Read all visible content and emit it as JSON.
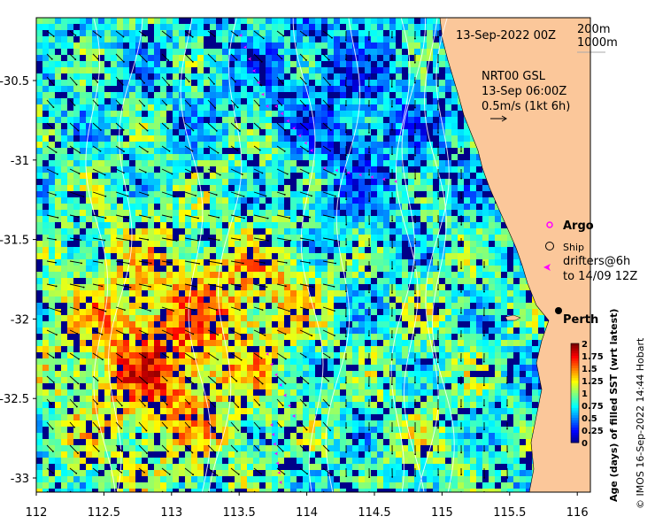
{
  "map": {
    "date_label": "13-Sep-2022 00Z",
    "contour_labels": [
      "200m",
      "1000m"
    ],
    "current_model": "NRT00 GSL",
    "current_time": "13-Sep 06:00Z",
    "current_scale": "0.5m/s (1kt 6h)",
    "x_ticks": [
      "112",
      "112.5",
      "113",
      "113.5",
      "114",
      "114.5",
      "115",
      "115.5",
      "116"
    ],
    "y_ticks": [
      "-30.5",
      "-31",
      "-31.5",
      "-32",
      "-32.5",
      "-33"
    ],
    "place_label": "Perth",
    "colormap": [
      "#00007f",
      "#0000ff",
      "#007fff",
      "#00ffff",
      "#7fff7f",
      "#ffff00",
      "#ff7f00",
      "#ff0000",
      "#7f0000"
    ],
    "land_color": "#fbc79a",
    "observation_color": "#ff00ff"
  },
  "legend": {
    "argo": "Argo",
    "ship": "Ship",
    "drifters_line1": "drifters@6h",
    "drifters_line2": "to 14/09 12Z"
  },
  "colorbar": {
    "tick_labels": [
      "2",
      "1.75",
      "1.5",
      "1.25",
      "1",
      "0.75",
      "0.5",
      "0.25",
      "0"
    ],
    "label": "Age (days) of filled SST (wrt latest)"
  },
  "credit": "© IMOS 16-Sep-2022 14:44 Hobart"
}
